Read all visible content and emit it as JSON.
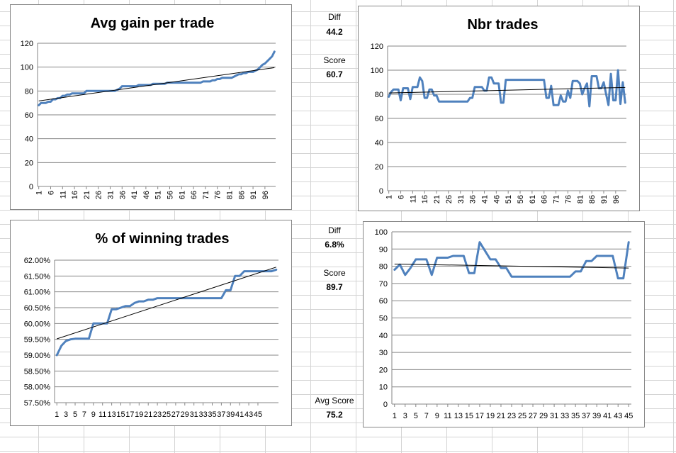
{
  "side": {
    "diff1_label": "Diff",
    "diff1_value": "44.2",
    "score1_label": "Score",
    "score1_value": "60.7",
    "diff2_label": "Diff",
    "diff2_value": "6.8%",
    "score2_label": "Score",
    "score2_value": "89.7",
    "avg_label": "Avg Score",
    "avg_value": "75.2"
  },
  "colors": {
    "series": "#4f81bd",
    "trend": "#000000",
    "grid": "#868686"
  },
  "chart_data": [
    {
      "id": "avg-gain",
      "type": "line",
      "title": "Avg gain per trade",
      "ylim": [
        0,
        120
      ],
      "yticks": [
        0,
        20,
        40,
        60,
        80,
        100,
        120
      ],
      "ytick_labels": [
        "0",
        "20",
        "40",
        "60",
        "80",
        "100",
        "120"
      ],
      "ytick_rotate": false,
      "xticks": [
        1,
        6,
        11,
        16,
        21,
        26,
        31,
        36,
        41,
        46,
        51,
        56,
        61,
        66,
        71,
        76,
        81,
        86,
        91,
        96
      ],
      "x_rotated": true,
      "grid": true,
      "trendline": true,
      "values": [
        68,
        70,
        70,
        70,
        71,
        71,
        73,
        73,
        74,
        74,
        76,
        76,
        77,
        77,
        78,
        78,
        78,
        78,
        78,
        78,
        80,
        80,
        80,
        80,
        80,
        80,
        80,
        80,
        80,
        80,
        80,
        80,
        80,
        81,
        82,
        84,
        84,
        84,
        84,
        84,
        84,
        84,
        85,
        85,
        85,
        85,
        85,
        85,
        86,
        86,
        86,
        86,
        86,
        86,
        87,
        87,
        87,
        87,
        87,
        87,
        87,
        87,
        87,
        87,
        87,
        87,
        87,
        87,
        87,
        88,
        88,
        88,
        88,
        89,
        89,
        90,
        90,
        91,
        91,
        91,
        91,
        91,
        92,
        93,
        94,
        94,
        95,
        95,
        96,
        96,
        96,
        97,
        98,
        100,
        102,
        103,
        105,
        107,
        109,
        113
      ]
    },
    {
      "id": "nbr-trades-1",
      "type": "line",
      "title": "Nbr trades",
      "ylim": [
        0,
        120
      ],
      "yticks": [
        0,
        20,
        40,
        60,
        80,
        100,
        120
      ],
      "ytick_labels": [
        "0",
        "20",
        "40",
        "60",
        "80",
        "100",
        "120"
      ],
      "ytick_rotate": false,
      "xticks": [
        1,
        6,
        11,
        16,
        21,
        26,
        31,
        36,
        41,
        46,
        51,
        56,
        61,
        66,
        71,
        76,
        81,
        86,
        91,
        96
      ],
      "x_rotated": true,
      "grid": true,
      "trendline": true,
      "values": [
        78,
        82,
        84,
        84,
        84,
        75,
        85,
        85,
        85,
        76,
        86,
        86,
        86,
        94,
        91,
        77,
        77,
        84,
        84,
        79,
        79,
        74,
        74,
        74,
        74,
        74,
        74,
        74,
        74,
        74,
        74,
        74,
        74,
        74,
        77,
        77,
        86,
        86,
        86,
        86,
        83,
        83,
        94,
        94,
        89,
        89,
        89,
        73,
        73,
        92,
        92,
        92,
        92,
        92,
        92,
        92,
        92,
        92,
        92,
        92,
        92,
        92,
        92,
        92,
        92,
        92,
        77,
        77,
        87,
        71,
        71,
        71,
        79,
        74,
        74,
        83,
        77,
        91,
        91,
        91,
        89,
        80,
        85,
        89,
        70,
        95,
        95,
        95,
        85,
        85,
        90,
        80,
        71,
        97,
        75,
        75,
        100,
        72,
        90,
        73
      ]
    },
    {
      "id": "winning-pct",
      "type": "line",
      "title": "% of winning trades",
      "ylim": [
        57.5,
        62.0
      ],
      "yticks": [
        57.5,
        58.0,
        58.5,
        59.0,
        59.5,
        60.0,
        60.5,
        61.0,
        61.5,
        62.0
      ],
      "ytick_labels": [
        "57.50%",
        "58.00%",
        "58.50%",
        "59.00%",
        "59.50%",
        "60.00%",
        "60.50%",
        "61.00%",
        "61.50%",
        "62.00%"
      ],
      "xticks": [
        1,
        3,
        5,
        7,
        9,
        11,
        13,
        15,
        17,
        19,
        21,
        23,
        25,
        27,
        29,
        31,
        33,
        35,
        37,
        39,
        41,
        43,
        45
      ],
      "x_rotated": false,
      "grid": true,
      "trendline": true,
      "values": [
        59.0,
        59.3,
        59.45,
        59.5,
        59.52,
        59.52,
        59.52,
        59.52,
        60.0,
        60.0,
        60.0,
        60.0,
        60.45,
        60.45,
        60.5,
        60.55,
        60.55,
        60.65,
        60.7,
        60.7,
        60.75,
        60.75,
        60.8,
        60.8,
        60.8,
        60.8,
        60.8,
        60.8,
        60.8,
        60.8,
        60.8,
        60.8,
        60.8,
        60.8,
        60.8,
        60.8,
        60.8,
        61.05,
        61.05,
        61.5,
        61.5,
        61.65,
        61.65,
        61.65,
        61.65,
        61.65,
        61.65,
        61.65,
        61.7
      ]
    },
    {
      "id": "nbr-trades-2",
      "type": "line",
      "title": "",
      "ylim": [
        0,
        100
      ],
      "yticks": [
        0,
        10,
        20,
        30,
        40,
        50,
        60,
        70,
        80,
        90,
        100
      ],
      "ytick_labels": [
        "0",
        "10",
        "20",
        "30",
        "40",
        "50",
        "60",
        "70",
        "80",
        "90",
        "100"
      ],
      "xticks": [
        1,
        3,
        5,
        7,
        9,
        11,
        13,
        15,
        17,
        19,
        21,
        23,
        25,
        27,
        29,
        31,
        33,
        35,
        37,
        39,
        41,
        43,
        45
      ],
      "x_rotated": false,
      "grid": true,
      "trendline": true,
      "values": [
        78,
        81,
        75,
        79,
        84,
        84,
        84,
        75,
        85,
        85,
        85,
        86,
        86,
        86,
        76,
        76,
        94,
        89,
        84,
        84,
        79,
        79,
        74,
        74,
        74,
        74,
        74,
        74,
        74,
        74,
        74,
        74,
        74,
        74,
        77,
        77,
        83,
        83,
        86,
        86,
        86,
        86,
        73,
        73,
        94
      ]
    }
  ]
}
